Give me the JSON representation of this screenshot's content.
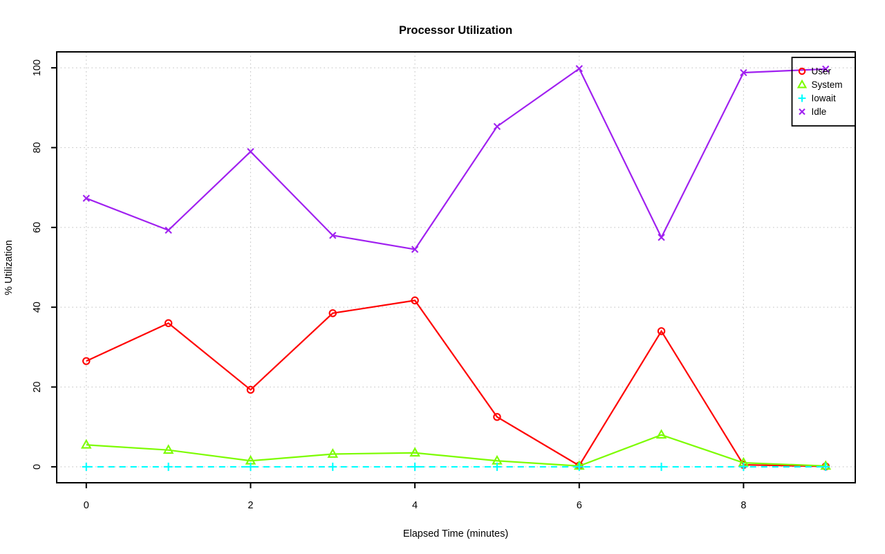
{
  "chart_data": {
    "type": "line",
    "title": "Processor Utilization",
    "xlabel": "Elapsed Time (minutes)",
    "ylabel": "% Utilization",
    "x": [
      0,
      1,
      2,
      3,
      4,
      5,
      6,
      7,
      8,
      9
    ],
    "xlim": [
      -0.36,
      9.36
    ],
    "ylim": [
      -4,
      104
    ],
    "x_ticks": [
      0,
      2,
      4,
      6,
      8
    ],
    "y_ticks": [
      0,
      20,
      40,
      60,
      80,
      100
    ],
    "grid": {
      "x_at": [
        0,
        2,
        4,
        6,
        8
      ],
      "y_at": [
        0,
        20,
        40,
        60,
        80,
        100
      ],
      "style": "dotted",
      "color": "#c8c8c8"
    },
    "series": [
      {
        "name": "User",
        "color": "#ff0000",
        "marker": "circle",
        "line": "solid",
        "values": [
          26.5,
          36,
          19.3,
          38.5,
          41.7,
          12.5,
          0.3,
          34,
          0.5,
          0.1
        ]
      },
      {
        "name": "System",
        "color": "#7cfc00",
        "marker": "triangle",
        "line": "solid",
        "values": [
          5.5,
          4.2,
          1.5,
          3.2,
          3.5,
          1.5,
          0.2,
          8,
          1,
          0.2
        ]
      },
      {
        "name": "Iowait",
        "color": "#00ffff",
        "marker": "plus",
        "line": "dashed",
        "values": [
          0,
          0,
          0,
          0,
          0,
          0,
          0,
          0,
          0,
          0
        ]
      },
      {
        "name": "Idle",
        "color": "#a020f0",
        "marker": "x",
        "line": "solid",
        "values": [
          67.3,
          59.3,
          79,
          58,
          54.5,
          85.3,
          99.8,
          57.5,
          98.8,
          99.7
        ]
      }
    ],
    "legend": {
      "position": "top-right",
      "entries": [
        "User",
        "System",
        "Iowait",
        "Idle"
      ]
    },
    "frame_color": "#000000",
    "background": "#ffffff"
  }
}
